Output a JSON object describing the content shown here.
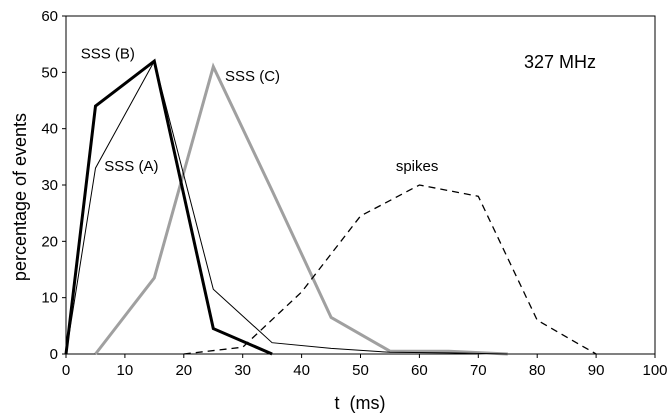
{
  "chart_data": {
    "type": "line",
    "title": "",
    "annotation": "327 MHz",
    "xlabel": "t  (ms)",
    "ylabel": "percentage of events",
    "xlim": [
      0,
      100
    ],
    "ylim": [
      0,
      60
    ],
    "x_ticks": [
      0,
      10,
      20,
      30,
      40,
      50,
      60,
      70,
      80,
      90,
      100
    ],
    "y_ticks": [
      0,
      10,
      20,
      30,
      40,
      50,
      60
    ],
    "grid": false,
    "legend": "none",
    "series": [
      {
        "name": "SSS (A)",
        "color": "#000000",
        "style": "solid-thin",
        "x": [
          0,
          5,
          15,
          25,
          35,
          45,
          55,
          65,
          75
        ],
        "y": [
          0,
          33,
          52,
          11.5,
          2,
          1,
          0.3,
          0.2,
          0
        ]
      },
      {
        "name": "SSS (B)",
        "color": "#000000",
        "style": "solid-thick",
        "x": [
          0,
          5,
          15,
          25,
          35
        ],
        "y": [
          0,
          44,
          52,
          4.5,
          0
        ]
      },
      {
        "name": "SSS (C)",
        "color": "#a0a0a0",
        "style": "solid-thick",
        "x": [
          5,
          15,
          25,
          35,
          45,
          55,
          65,
          75
        ],
        "y": [
          0,
          13.5,
          51,
          29,
          6.5,
          0.5,
          0.5,
          0
        ]
      },
      {
        "name": "spikes",
        "color": "#000000",
        "style": "dashed",
        "x": [
          20,
          30,
          40,
          50,
          60,
          70,
          80,
          90
        ],
        "y": [
          0,
          1.2,
          11,
          24.5,
          30,
          28,
          6,
          0
        ]
      }
    ]
  }
}
